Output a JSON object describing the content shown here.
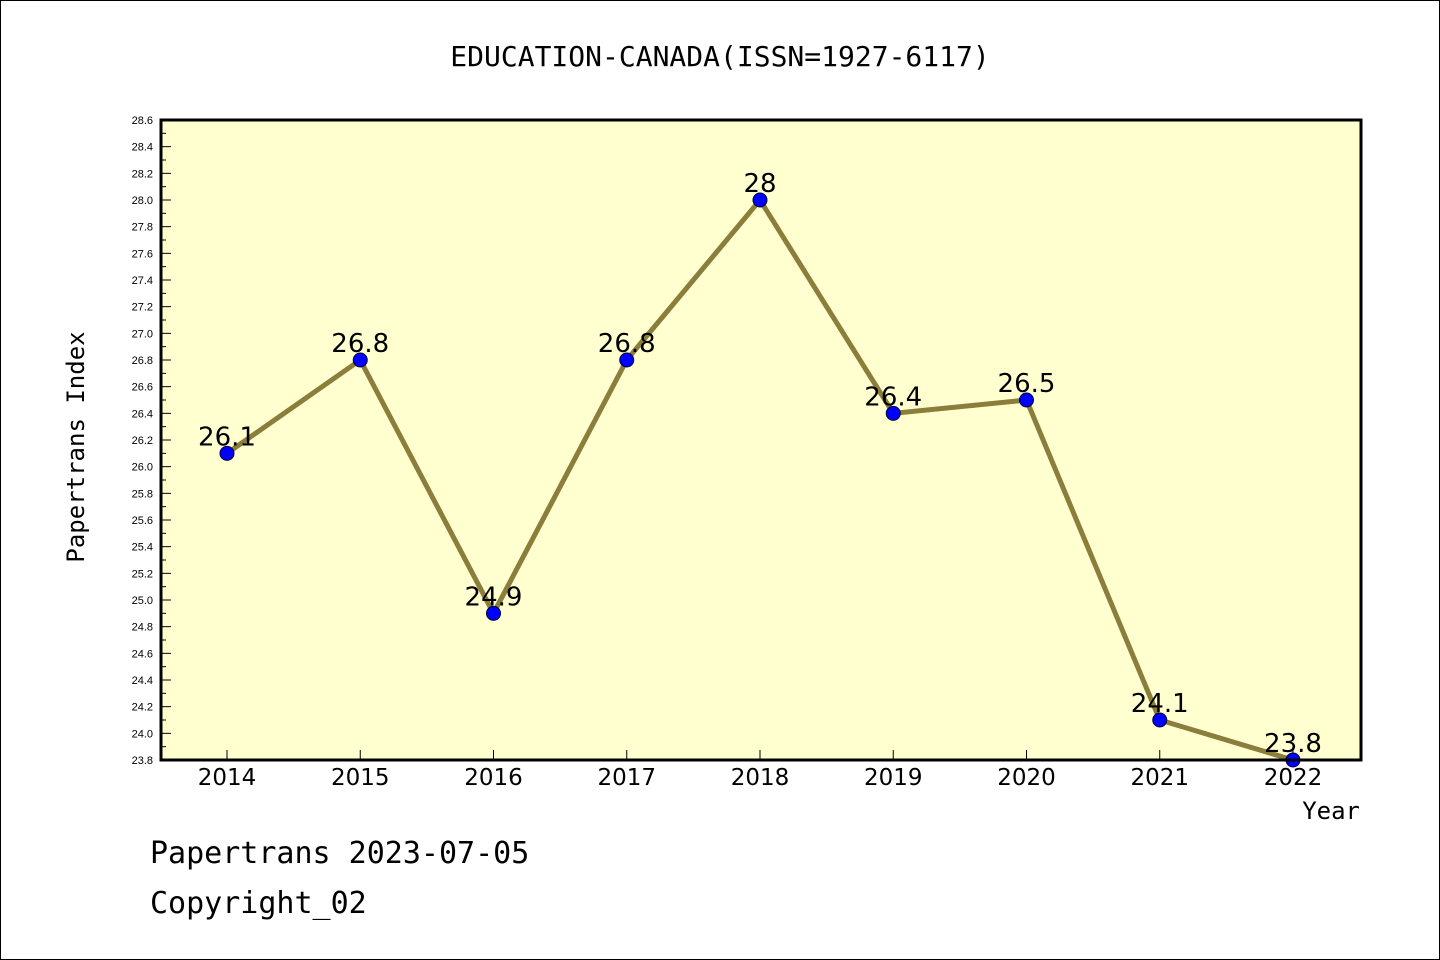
{
  "chart_data": {
    "type": "line",
    "title": "EDUCATION-CANADA(ISSN=1927-6117)",
    "xlabel": "Year",
    "ylabel": "Papertrans Index",
    "categories": [
      "2014",
      "2015",
      "2016",
      "2017",
      "2018",
      "2019",
      "2020",
      "2021",
      "2022"
    ],
    "values": [
      26.1,
      26.8,
      24.9,
      26.8,
      28,
      26.4,
      26.5,
      24.1,
      23.8
    ],
    "data_labels": [
      "26.1",
      "26.8",
      "24.9",
      "26.8",
      "28",
      "26.4",
      "26.5",
      "24.1",
      "23.8"
    ],
    "ylim": [
      23.8,
      28.6
    ],
    "yticks": [
      "23.8",
      "24.0",
      "24.2",
      "24.4",
      "24.6",
      "24.8",
      "25.0",
      "25.2",
      "25.4",
      "25.6",
      "25.8",
      "26.0",
      "26.2",
      "26.4",
      "26.6",
      "26.8",
      "27.0",
      "27.2",
      "27.4",
      "27.6",
      "27.8",
      "28.0",
      "28.2",
      "28.4",
      "28.6"
    ],
    "grid": false,
    "legend": "none",
    "colors": {
      "plot_background": "#ffffd0",
      "line": "#8b7d3a",
      "marker": "#0000ff"
    }
  },
  "footer": {
    "date_line": "Papertrans 2023-07-05",
    "copyright": "Copyright_02"
  }
}
